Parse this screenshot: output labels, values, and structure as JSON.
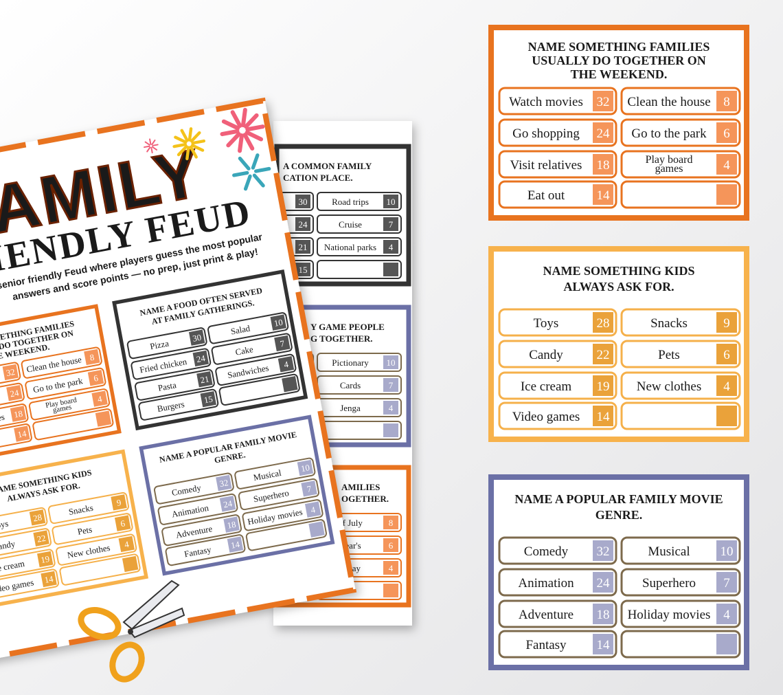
{
  "front_page": {
    "title": "FAMILY",
    "subtitle": "FRIENDLY FEUD",
    "description": [
      "senior friendly Feud where players guess the most popular",
      "answers and score points — no prep, just print & play!"
    ],
    "cards": [
      {
        "title": [
          "NAME SOMETHING FAMILIES",
          "USUALLY DO TOGETHER ON",
          "THE WEEKEND."
        ],
        "answers": [
          {
            "text": "Watch movies",
            "points": 32
          },
          {
            "text": "Go shopping",
            "points": 24
          },
          {
            "text": "Visit relatives",
            "points": 18
          },
          {
            "text": "Eat out",
            "points": 14
          },
          {
            "text": "Clean the house",
            "points": 8
          },
          {
            "text": "Go to the park",
            "points": 6
          },
          {
            "text": [
              "Play board",
              "games"
            ],
            "points": 4
          }
        ]
      },
      {
        "title": [
          "NAME A FOOD OFTEN SERVED",
          "AT FAMILY GATHERINGS."
        ],
        "answers": [
          {
            "text": "Pizza",
            "points": 30
          },
          {
            "text": "Fried chicken",
            "points": 24
          },
          {
            "text": "Pasta",
            "points": 21
          },
          {
            "text": "Burgers",
            "points": 15
          },
          {
            "text": "Salad",
            "points": 10
          },
          {
            "text": "Cake",
            "points": 7
          },
          {
            "text": "Sandwiches",
            "points": 4
          }
        ]
      },
      {
        "title": [
          "NAME SOMETHING KIDS",
          "ALWAYS ASK FOR."
        ],
        "answers": [
          {
            "text": "Toys",
            "points": 28
          },
          {
            "text": "Candy",
            "points": 22
          },
          {
            "text": "Ice cream",
            "points": 19
          },
          {
            "text": "Video games",
            "points": 14
          },
          {
            "text": "Snacks",
            "points": 9
          },
          {
            "text": "Pets",
            "points": 6
          },
          {
            "text": "New clothes",
            "points": 4
          }
        ]
      },
      {
        "title": [
          "NAME A POPULAR FAMILY MOVIE",
          "GENRE."
        ],
        "answers": [
          {
            "text": "Comedy",
            "points": 32
          },
          {
            "text": "Animation",
            "points": 24
          },
          {
            "text": "Adventure",
            "points": 18
          },
          {
            "text": "Fantasy",
            "points": 14
          },
          {
            "text": "Musical",
            "points": 10
          },
          {
            "text": "Superhero",
            "points": 7
          },
          {
            "text": "Holiday movies",
            "points": 4
          }
        ]
      }
    ]
  },
  "back_page": {
    "cards": [
      {
        "title": [
          "A COMMON FAMILY",
          "CATION PLACE."
        ],
        "left_points": [
          30,
          24,
          21,
          15
        ],
        "answers": [
          {
            "text": "Road trips",
            "points": 10
          },
          {
            "text": "Cruise",
            "points": 7
          },
          {
            "text": "National parks",
            "points": 4
          }
        ]
      },
      {
        "title": [
          "Y GAME PEOPLE",
          "G TOGETHER."
        ],
        "left_points": [],
        "answers": [
          {
            "text": "Pictionary",
            "points": 10
          },
          {
            "text": "Cards",
            "points": 7
          },
          {
            "text": "Jenga",
            "points": 4
          }
        ]
      },
      {
        "title": [
          "AMILIES",
          "OGETHER."
        ],
        "left_points": [],
        "answers": [
          {
            "text": "of July",
            "points": 8
          },
          {
            "text": "Year's",
            "points": 6
          },
          {
            "text": "s Day",
            "points": 4
          }
        ]
      }
    ]
  },
  "cards": [
    {
      "title": [
        "NAME SOMETHING FAMILIES",
        "USUALLY DO TOGETHER ON",
        "THE WEEKEND."
      ],
      "answers": [
        {
          "text": "Watch movies",
          "points": 32
        },
        {
          "text": "Go shopping",
          "points": 24
        },
        {
          "text": "Visit relatives",
          "points": 18
        },
        {
          "text": "Eat out",
          "points": 14
        },
        {
          "text": "Clean the house",
          "points": 8
        },
        {
          "text": "Go to the park",
          "points": 6
        },
        {
          "text": [
            "Play board",
            "games"
          ],
          "points": 4
        }
      ]
    },
    {
      "title": [
        "NAME SOMETHING KIDS",
        "ALWAYS ASK FOR."
      ],
      "answers": [
        {
          "text": "Toys",
          "points": 28
        },
        {
          "text": "Candy",
          "points": 22
        },
        {
          "text": "Ice cream",
          "points": 19
        },
        {
          "text": "Video games",
          "points": 14
        },
        {
          "text": "Snacks",
          "points": 9
        },
        {
          "text": "Pets",
          "points": 6
        },
        {
          "text": "New clothes",
          "points": 4
        }
      ]
    },
    {
      "title": [
        "NAME A POPULAR FAMILY MOVIE",
        "GENRE."
      ],
      "answers": [
        {
          "text": "Comedy",
          "points": 32
        },
        {
          "text": "Animation",
          "points": 24
        },
        {
          "text": "Adventure",
          "points": 18
        },
        {
          "text": "Fantasy",
          "points": 14
        },
        {
          "text": "Musical",
          "points": 10
        },
        {
          "text": "Superhero",
          "points": 7
        },
        {
          "text": "Holiday movies",
          "points": 4
        }
      ]
    }
  ]
}
